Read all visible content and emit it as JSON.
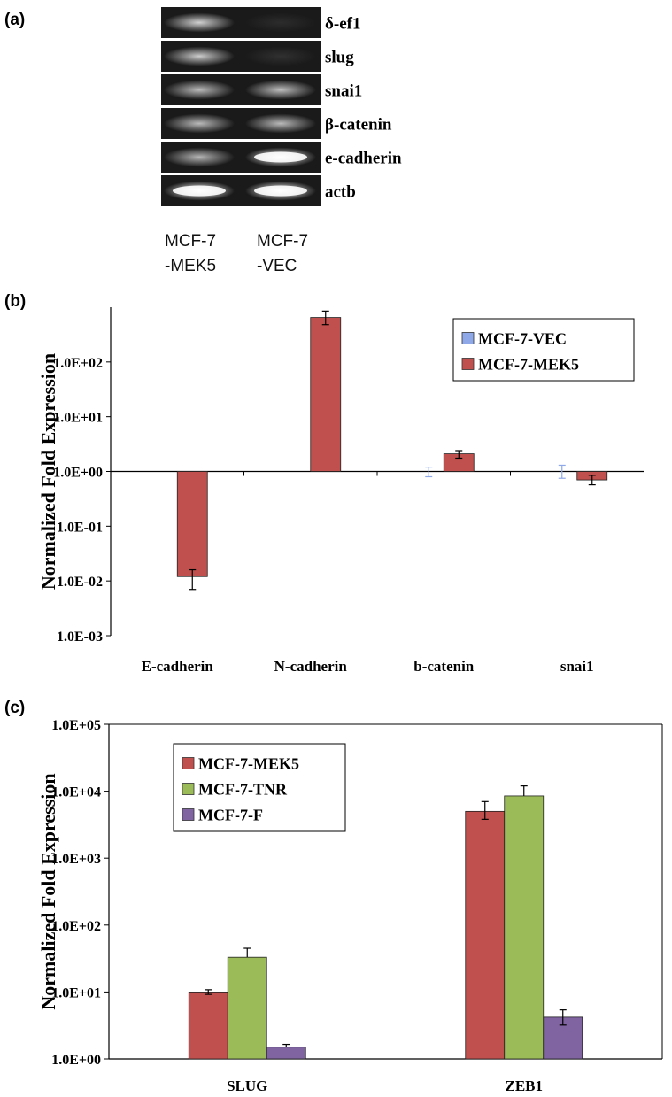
{
  "panel_a": {
    "label": "(a)",
    "genes": [
      "δ-ef1",
      "slug",
      "snai1",
      "β-catenin",
      "e-cadherin",
      "actb"
    ],
    "lanes": [
      {
        "line1": "MCF-7",
        "line2": "-MEK5"
      },
      {
        "line1": "MCF-7",
        "line2": "-VEC"
      }
    ],
    "band_intensity": [
      [
        0.8,
        0.08
      ],
      [
        0.78,
        0.1
      ],
      [
        0.7,
        0.72
      ],
      [
        0.7,
        0.7
      ],
      [
        0.68,
        0.95
      ],
      [
        1.0,
        1.0
      ]
    ]
  },
  "panel_b_label": "(b)",
  "panel_c_label": "(c)",
  "chart_data": [
    {
      "type": "bar",
      "yscale": "log",
      "ylim": [
        0.001,
        1000
      ],
      "baseline": 1,
      "ylabel": "Normalized  Fold  Expression",
      "ytick_values": [
        0.001,
        0.01,
        0.1,
        1,
        10,
        100
      ],
      "ytick_labels": [
        "1.0E-03",
        "1.0E-02",
        "1.0E-01",
        "1.0E+00",
        "1.0E+01",
        "1.0E+02"
      ],
      "categories": [
        "E-cadherin",
        "N-cadherin",
        "b-catenin",
        "snai1"
      ],
      "series": [
        {
          "name": "MCF-7-VEC",
          "color": "#8fa8e8",
          "values": [
            1,
            1,
            1,
            1
          ],
          "err_low": [
            null,
            null,
            0.8,
            0.75
          ],
          "err_high": [
            null,
            null,
            1.2,
            1.3
          ]
        },
        {
          "name": "MCF-7-MEK5",
          "color": "#c0504d",
          "values": [
            0.012,
            650,
            2.1,
            0.7
          ],
          "err_low": [
            0.007,
            480,
            1.75,
            0.57
          ],
          "err_high": [
            0.016,
            850,
            2.4,
            0.85
          ]
        }
      ],
      "legend": "top-right",
      "grid": false
    },
    {
      "type": "bar",
      "yscale": "log",
      "ylim": [
        1,
        100000
      ],
      "ylabel": "Normalized  Fold  Expression",
      "ytick_values": [
        1,
        10,
        100,
        1000,
        10000,
        100000
      ],
      "ytick_labels": [
        "1.0E+00",
        "1.0E+01",
        "1.0E+02",
        "1.0E+03",
        "1.0E+04",
        "1.0E+05"
      ],
      "categories": [
        "SLUG",
        "ZEB1"
      ],
      "series": [
        {
          "name": "MCF-7-MEK5",
          "color": "#c0504d",
          "values": [
            10,
            5000
          ],
          "err_low": [
            9.2,
            3800
          ],
          "err_high": [
            10.8,
            7000
          ]
        },
        {
          "name": "MCF-7-TNR",
          "color": "#9bbb59",
          "values": [
            33,
            8500
          ],
          "err_low": [
            null,
            null
          ],
          "err_high": [
            45,
            12000
          ]
        },
        {
          "name": "MCF-7-F",
          "color": "#8064a2",
          "values": [
            1.5,
            4.2
          ],
          "err_low": [
            null,
            3.2
          ],
          "err_high": [
            1.65,
            5.4
          ]
        }
      ],
      "legend": "top-left",
      "grid": false
    }
  ]
}
